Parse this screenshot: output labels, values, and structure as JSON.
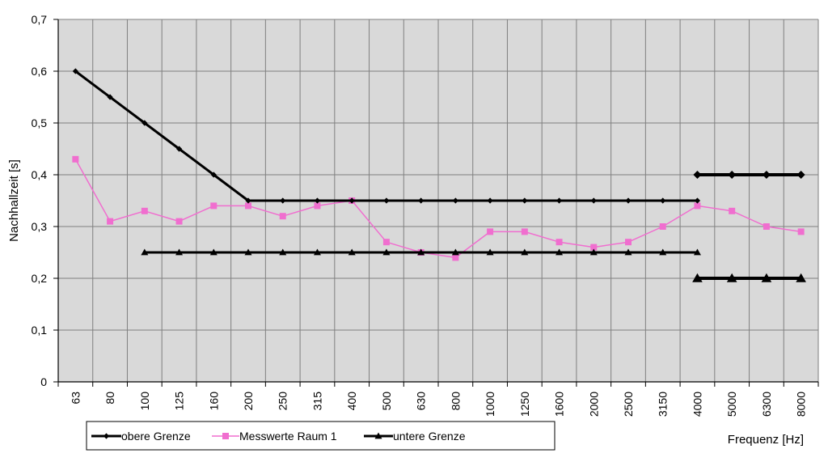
{
  "chart_data": {
    "type": "line",
    "title": "",
    "xlabel": "Frequenz [Hz]",
    "ylabel": "Nachhallzeit [s]",
    "ylim": [
      0,
      0.7
    ],
    "yticks": [
      "0",
      "0,1",
      "0,2",
      "0,3",
      "0,4",
      "0,5",
      "0,6",
      "0,7"
    ],
    "categories": [
      "63",
      "80",
      "100",
      "125",
      "160",
      "200",
      "250",
      "315",
      "400",
      "500",
      "630",
      "800",
      "1000",
      "1250",
      "1600",
      "2000",
      "2500",
      "3150",
      "4000",
      "5000",
      "6300",
      "8000"
    ],
    "grid": true,
    "legend_position": "bottom-left",
    "colors": {
      "grid": "#808080",
      "plot_bg": "#d9d9d9",
      "pink": "#f06ecf",
      "black": "#000000"
    },
    "series": [
      {
        "name": "obere Grenze",
        "color": "#000000",
        "marker": "diamond",
        "segments": [
          {
            "x": [
              "63",
              "80",
              "100",
              "125",
              "160",
              "200",
              "250",
              "315",
              "400",
              "500",
              "630",
              "800",
              "1000",
              "1250",
              "1600",
              "2000",
              "2500",
              "3150",
              "4000"
            ],
            "values": [
              0.6,
              0.55,
              0.5,
              0.45,
              0.4,
              0.35,
              0.35,
              0.35,
              0.35,
              0.35,
              0.35,
              0.35,
              0.35,
              0.35,
              0.35,
              0.35,
              0.35,
              0.35,
              0.35
            ]
          },
          {
            "x": [
              "4000",
              "5000",
              "6300",
              "8000"
            ],
            "values": [
              0.4,
              0.4,
              0.4,
              0.4
            ]
          }
        ]
      },
      {
        "name": "Messwerte Raum 1",
        "color": "#f06ecf",
        "marker": "square",
        "segments": [
          {
            "x": [
              "63",
              "80",
              "100",
              "125",
              "160",
              "200",
              "250",
              "315",
              "400",
              "500",
              "630",
              "800",
              "1000",
              "1250",
              "1600",
              "2000",
              "2500",
              "3150",
              "4000",
              "5000",
              "6300",
              "8000"
            ],
            "values": [
              0.43,
              0.31,
              0.33,
              0.31,
              0.34,
              0.34,
              0.32,
              0.34,
              0.35,
              0.27,
              0.25,
              0.24,
              0.29,
              0.29,
              0.27,
              0.26,
              0.27,
              0.3,
              0.34,
              0.33,
              0.3,
              0.29
            ]
          }
        ]
      },
      {
        "name": "untere Grenze",
        "color": "#000000",
        "marker": "triangle",
        "segments": [
          {
            "x": [
              "100",
              "125",
              "160",
              "200",
              "250",
              "315",
              "400",
              "500",
              "630",
              "800",
              "1000",
              "1250",
              "1600",
              "2000",
              "2500",
              "3150",
              "4000"
            ],
            "values": [
              0.25,
              0.25,
              0.25,
              0.25,
              0.25,
              0.25,
              0.25,
              0.25,
              0.25,
              0.25,
              0.25,
              0.25,
              0.25,
              0.25,
              0.25,
              0.25,
              0.25
            ]
          },
          {
            "x": [
              "4000",
              "5000",
              "6300",
              "8000"
            ],
            "values": [
              0.2,
              0.2,
              0.2,
              0.2
            ]
          }
        ]
      }
    ]
  }
}
